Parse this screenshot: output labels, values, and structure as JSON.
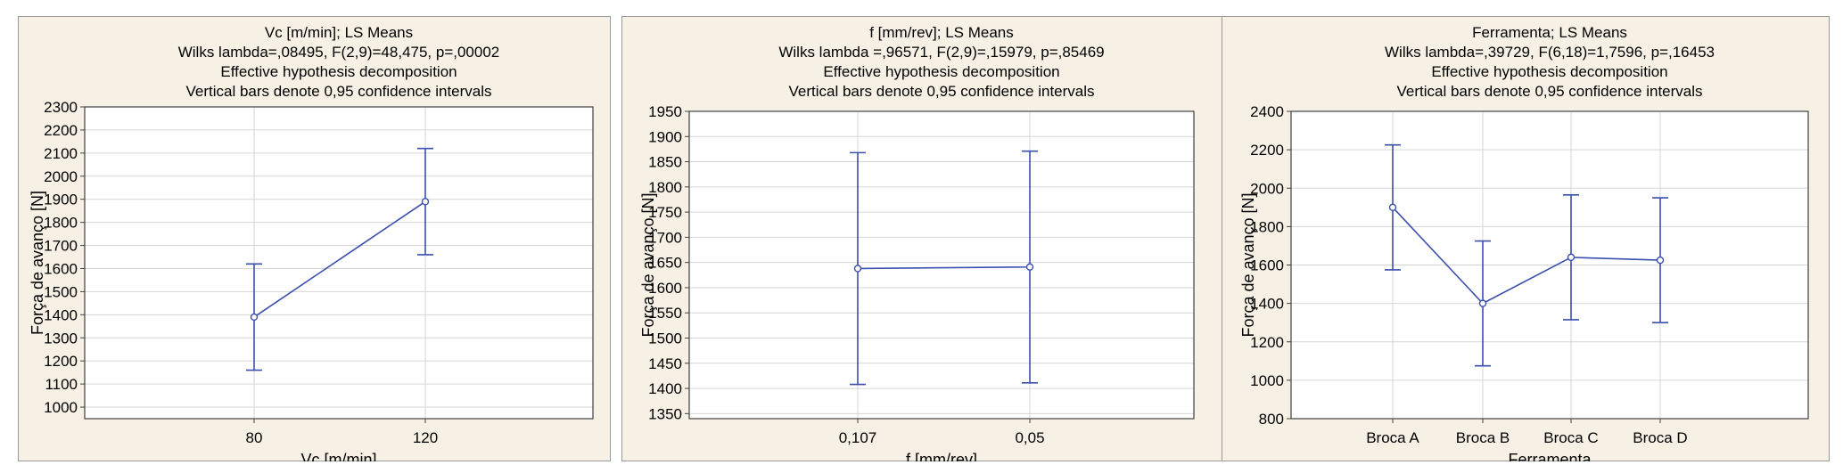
{
  "colors": {
    "panel_bg": "#f6f1e4",
    "plot_bg": "#ffffff",
    "grid": "#d6d6d6",
    "series": "#3b4fae",
    "frame": "#404040"
  },
  "chart_data": [
    {
      "type": "line",
      "title_lines": [
        "Vc [m/min]; LS Means",
        "Wilks lambda=,08495, F(2,9)=48,475, p=,00002",
        "Effective hypothesis decomposition",
        "Vertical bars denote 0,95 confidence intervals"
      ],
      "xlabel": "Vc [m/min]",
      "ylabel": "Força de avanço [N]",
      "categories": [
        "80",
        "120"
      ],
      "y": [
        1390,
        1890
      ],
      "ci_low": [
        1160,
        1660
      ],
      "ci_high": [
        1620,
        2120
      ],
      "ylim": [
        950,
        2300
      ],
      "yticks": [
        1000,
        1100,
        1200,
        1300,
        1400,
        1500,
        1600,
        1700,
        1800,
        1900,
        2000,
        2100,
        2200,
        2300
      ],
      "grid": true
    },
    {
      "type": "line",
      "title_lines": [
        "f [mm/rev]; LS Means",
        "Wilks lambda =,96571, F(2,9)=,15979, p=,85469",
        "Effective hypothesis decomposition",
        "Vertical bars denote 0,95 confidence intervals"
      ],
      "xlabel": "f [mm/rev]",
      "ylabel": "Força de avanço [N]",
      "categories": [
        "0,107",
        "0,05"
      ],
      "y": [
        1638,
        1641
      ],
      "ci_low": [
        1408,
        1411
      ],
      "ci_high": [
        1868,
        1871
      ],
      "ylim": [
        1340,
        1950
      ],
      "yticks": [
        1350,
        1400,
        1450,
        1500,
        1550,
        1600,
        1650,
        1700,
        1750,
        1800,
        1850,
        1900,
        1950
      ],
      "grid": true
    },
    {
      "type": "line",
      "title_lines": [
        "Ferramenta; LS Means",
        "Wilks lambda=,39729, F(6,18)=1,7596, p=,16453",
        "Effective hypothesis decomposition",
        "Vertical bars denote 0,95 confidence intervals"
      ],
      "xlabel": "Ferramenta",
      "ylabel": "Força de avanço [N]",
      "categories": [
        "Broca A",
        "Broca  B",
        "Broca  C",
        "Broca  D"
      ],
      "y": [
        1900,
        1400,
        1640,
        1625
      ],
      "ci_low": [
        1575,
        1075,
        1315,
        1300
      ],
      "ci_high": [
        2225,
        1725,
        1965,
        1950
      ],
      "ylim": [
        800,
        2400
      ],
      "yticks": [
        800,
        1000,
        1200,
        1400,
        1600,
        1800,
        2000,
        2200,
        2400
      ],
      "grid": true
    }
  ]
}
